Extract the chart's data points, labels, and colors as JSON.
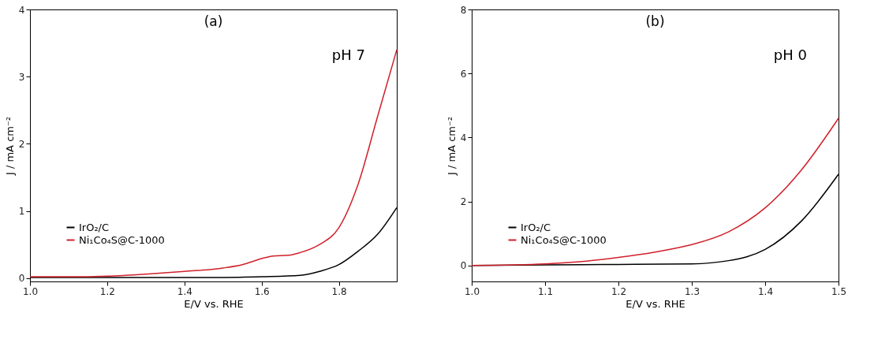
{
  "chart_data": [
    {
      "type": "line",
      "title": "(a)",
      "xlabel": "E/V vs. RHE",
      "ylabel": "J / mA cm⁻²",
      "annotations": [
        "pH 7"
      ],
      "xlim": [
        1.0,
        1.95
      ],
      "ylim": [
        -0.05,
        4
      ],
      "xticks": [
        {
          "value": 1,
          "label": "1.0"
        },
        1.2,
        1.4,
        1.6,
        1.8
      ],
      "yticks": [
        0,
        1,
        2,
        3,
        4
      ],
      "grid": false,
      "legend": "bottom left",
      "series": [
        {
          "name": "IrO₂/C",
          "color": "#000000",
          "x": [
            1.0,
            1.3,
            1.5,
            1.6,
            1.7,
            1.75,
            1.8,
            1.85,
            1.9,
            1.95
          ],
          "values": [
            0.01,
            0.01,
            0.01,
            0.02,
            0.04,
            0.1,
            0.2,
            0.4,
            0.65,
            1.05
          ]
        },
        {
          "name": "Ni₁Co₄S@C-1000",
          "color": "#d0202a",
          "x": [
            1.0,
            1.1,
            1.2,
            1.3,
            1.4,
            1.5,
            1.55,
            1.6,
            1.63,
            1.67,
            1.7,
            1.75,
            1.8,
            1.85,
            1.9,
            1.95
          ],
          "values": [
            0.02,
            0.02,
            0.03,
            0.06,
            0.1,
            0.15,
            0.2,
            0.29,
            0.33,
            0.34,
            0.38,
            0.5,
            0.75,
            1.4,
            2.4,
            3.4
          ]
        }
      ]
    },
    {
      "type": "line",
      "title": "(b)",
      "xlabel": "E/V vs. RHE",
      "ylabel": "J / mA cm⁻²",
      "annotations": [
        "pH 0"
      ],
      "xlim": [
        1.0,
        1.5
      ],
      "ylim": [
        -0.5,
        8
      ],
      "xticks": [
        {
          "value": 1,
          "label": "1.0"
        },
        1.1,
        1.2,
        1.3,
        1.4,
        1.5
      ],
      "yticks": [
        0,
        2,
        4,
        6,
        8
      ],
      "grid": false,
      "legend": "bottom left",
      "series": [
        {
          "name": "IrO₂/C",
          "color": "#000000",
          "x": [
            1.0,
            1.1,
            1.2,
            1.3,
            1.35,
            1.4,
            1.45,
            1.5
          ],
          "values": [
            0,
            0.02,
            0.03,
            0.05,
            0.15,
            0.5,
            1.4,
            2.85
          ]
        },
        {
          "name": "Ni₁Co₄S@C-1000",
          "color": "#d0202a",
          "x": [
            1.0,
            1.1,
            1.15,
            1.2,
            1.25,
            1.3,
            1.35,
            1.4,
            1.45,
            1.5
          ],
          "values": [
            0,
            0.05,
            0.12,
            0.25,
            0.42,
            0.65,
            1.05,
            1.8,
            3.0,
            4.6
          ]
        }
      ]
    }
  ]
}
